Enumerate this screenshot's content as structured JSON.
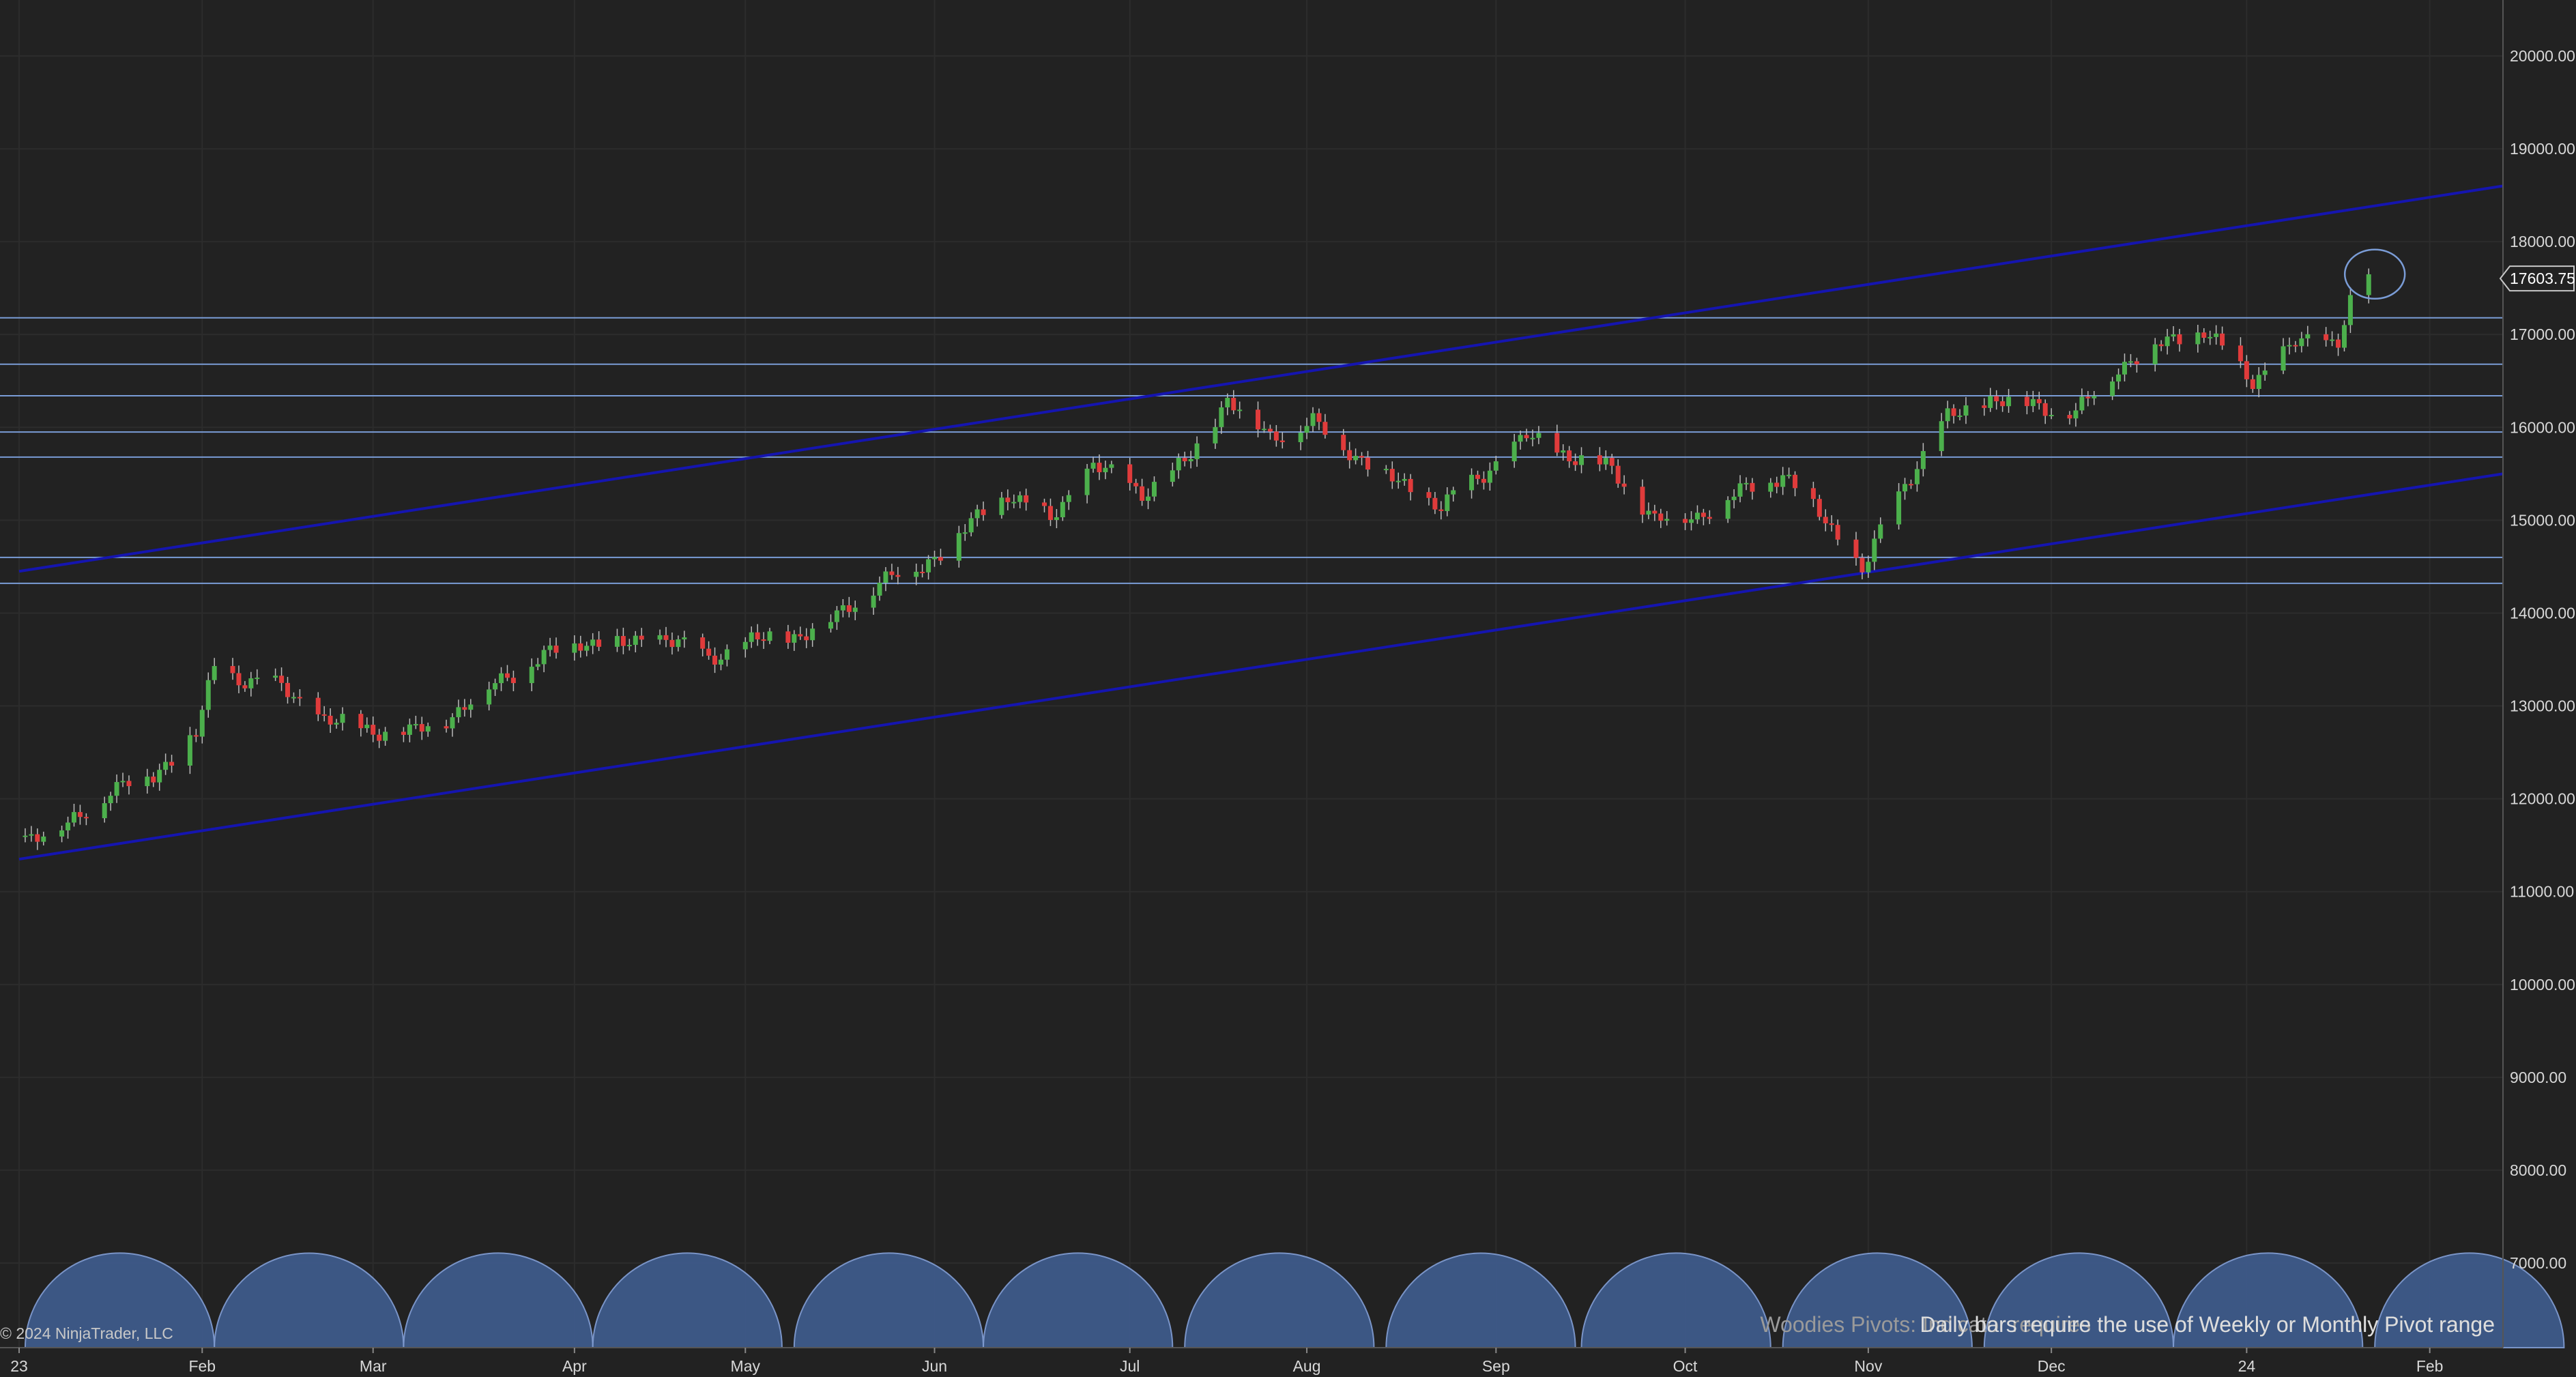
{
  "copyright": "© 2024 NinjaTrader, LLC",
  "status_messages": [
    "Woodies Pivots: Indicator requires the use of Weekly or Monthly Pivot range",
    "Daily bars require the use of Weekly or Monthly Pivot range"
  ],
  "colors": {
    "background": "#222222",
    "grid": "#2c2c2c",
    "up_candle": "#4cb04c",
    "down_candle": "#e03b3b",
    "wick": "#bbbbbb",
    "channel": "#1515b0",
    "horizontal_levels": "#7a9cd6",
    "cycle_fill": "#3e5a8a",
    "axis_text": "#d8d8d8",
    "price_marker_border": "#c8c8c8"
  },
  "chart_data": {
    "type": "candlestick",
    "title": "",
    "xlabel": "",
    "ylabel": "",
    "ylim": [
      6200,
      21000
    ],
    "y_ticks": [
      "7000.00",
      "8000.00",
      "9000.00",
      "10000.00",
      "11000.00",
      "12000.00",
      "13000.00",
      "14000.00",
      "15000.00",
      "16000.00",
      "17000.00",
      "18000.00",
      "19000.00",
      "20000.00"
    ],
    "x_tick_labels": [
      {
        "label": "23",
        "date": "2023-01-02"
      },
      {
        "label": "Feb",
        "date": "2023-02-01"
      },
      {
        "label": "Mar",
        "date": "2023-03-01"
      },
      {
        "label": "Apr",
        "date": "2023-04-03"
      },
      {
        "label": "May",
        "date": "2023-05-01"
      },
      {
        "label": "Jun",
        "date": "2023-06-01"
      },
      {
        "label": "Jul",
        "date": "2023-07-03"
      },
      {
        "label": "Aug",
        "date": "2023-08-01"
      },
      {
        "label": "Sep",
        "date": "2023-09-01"
      },
      {
        "label": "Oct",
        "date": "2023-10-02"
      },
      {
        "label": "Nov",
        "date": "2023-11-01"
      },
      {
        "label": "Dec",
        "date": "2023-12-01"
      },
      {
        "label": "24",
        "date": "2024-01-02"
      },
      {
        "label": "Feb",
        "date": "2024-02-01"
      }
    ],
    "last_price": "17603.75",
    "closes_weekly": [
      {
        "date": "2023-01-03",
        "close": 11600
      },
      {
        "date": "2023-01-10",
        "close": 11700
      },
      {
        "date": "2023-01-17",
        "close": 12100
      },
      {
        "date": "2023-01-24",
        "close": 12250
      },
      {
        "date": "2023-01-31",
        "close": 12700
      },
      {
        "date": "2023-02-03",
        "close": 13400
      },
      {
        "date": "2023-02-07",
        "close": 13300
      },
      {
        "date": "2023-02-14",
        "close": 13200
      },
      {
        "date": "2023-02-21",
        "close": 12850
      },
      {
        "date": "2023-02-28",
        "close": 12750
      },
      {
        "date": "2023-03-07",
        "close": 12700
      },
      {
        "date": "2023-03-14",
        "close": 12900
      },
      {
        "date": "2023-03-21",
        "close": 13250
      },
      {
        "date": "2023-03-28",
        "close": 13500
      },
      {
        "date": "2023-04-04",
        "close": 13700
      },
      {
        "date": "2023-04-11",
        "close": 13650
      },
      {
        "date": "2023-04-18",
        "close": 13750
      },
      {
        "date": "2023-04-25",
        "close": 13500
      },
      {
        "date": "2023-05-02",
        "close": 13700
      },
      {
        "date": "2023-05-09",
        "close": 13750
      },
      {
        "date": "2023-05-16",
        "close": 13950
      },
      {
        "date": "2023-05-23",
        "close": 14350
      },
      {
        "date": "2023-05-30",
        "close": 14500
      },
      {
        "date": "2023-06-06",
        "close": 14900
      },
      {
        "date": "2023-06-13",
        "close": 15300
      },
      {
        "date": "2023-06-20",
        "close": 15000
      },
      {
        "date": "2023-06-27",
        "close": 15600
      },
      {
        "date": "2023-07-05",
        "close": 15300
      },
      {
        "date": "2023-07-12",
        "close": 15600
      },
      {
        "date": "2023-07-19",
        "close": 16300
      },
      {
        "date": "2023-07-26",
        "close": 15900
      },
      {
        "date": "2023-08-02",
        "close": 16050
      },
      {
        "date": "2023-08-09",
        "close": 15700
      },
      {
        "date": "2023-08-16",
        "close": 15400
      },
      {
        "date": "2023-08-23",
        "close": 15150
      },
      {
        "date": "2023-08-30",
        "close": 15500
      },
      {
        "date": "2023-09-06",
        "close": 15900
      },
      {
        "date": "2023-09-13",
        "close": 15700
      },
      {
        "date": "2023-09-20",
        "close": 15550
      },
      {
        "date": "2023-09-27",
        "close": 15000
      },
      {
        "date": "2023-10-04",
        "close": 15050
      },
      {
        "date": "2023-10-11",
        "close": 15300
      },
      {
        "date": "2023-10-18",
        "close": 15500
      },
      {
        "date": "2023-10-25",
        "close": 15000
      },
      {
        "date": "2023-10-31",
        "close": 14450
      },
      {
        "date": "2023-11-07",
        "close": 15400
      },
      {
        "date": "2023-11-14",
        "close": 16100
      },
      {
        "date": "2023-11-21",
        "close": 16300
      },
      {
        "date": "2023-11-28",
        "close": 16250
      },
      {
        "date": "2023-12-05",
        "close": 16150
      },
      {
        "date": "2023-12-12",
        "close": 16650
      },
      {
        "date": "2023-12-19",
        "close": 16900
      },
      {
        "date": "2023-12-26",
        "close": 17050
      },
      {
        "date": "2024-01-03",
        "close": 16500
      },
      {
        "date": "2024-01-10",
        "close": 16900
      },
      {
        "date": "2024-01-17",
        "close": 16950
      },
      {
        "date": "2024-01-19",
        "close": 17350
      },
      {
        "date": "2024-01-22",
        "close": 17603.75
      }
    ],
    "horizontal_levels": [
      17180,
      16680,
      16340,
      15950,
      15680,
      14600,
      14320
    ],
    "channel_lines": [
      {
        "name": "upper",
        "start": {
          "date": "2023-01-02",
          "value": 14450
        },
        "end": {
          "date": "2024-02-13",
          "value": 18600
        }
      },
      {
        "name": "lower",
        "start": {
          "date": "2023-01-02",
          "value": 11350
        },
        "end": {
          "date": "2024-02-13",
          "value": 15500
        }
      }
    ],
    "highlight_circle": {
      "date": "2024-01-23",
      "value": 17650
    },
    "cycle_arc_starts": [
      "2023-01-03",
      "2023-02-03",
      "2023-03-06",
      "2023-04-06",
      "2023-05-09",
      "2023-06-09",
      "2023-07-12",
      "2023-08-14",
      "2023-09-15",
      "2023-10-18",
      "2023-11-20",
      "2023-12-21",
      "2024-01-23"
    ]
  }
}
